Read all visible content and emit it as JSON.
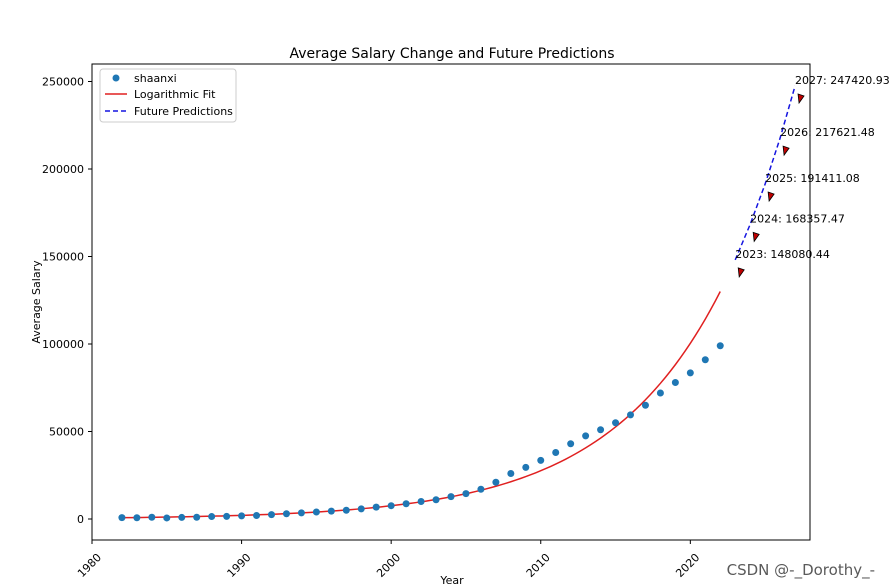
{
  "chart_data": {
    "type": "scatter",
    "title": "Average Salary Change and Future Predictions",
    "xlabel": "Year",
    "ylabel": "Average Salary",
    "xlim": [
      1980,
      2028
    ],
    "ylim": [
      -12000,
      260000
    ],
    "xticks": [
      1980,
      1990,
      2000,
      2010,
      2020
    ],
    "yticks": [
      0,
      50000,
      100000,
      150000,
      200000,
      250000
    ],
    "legend_position": "upper-left",
    "legend": [
      "shaanxi",
      "Logarithmic Fit",
      "Future Predictions"
    ],
    "series": [
      {
        "name": "shaanxi",
        "kind": "scatter",
        "color": "#1f77b4",
        "x": [
          1982,
          1983,
          1984,
          1985,
          1986,
          1987,
          1988,
          1989,
          1990,
          1991,
          1992,
          1993,
          1994,
          1995,
          1996,
          1997,
          1998,
          1999,
          2000,
          2001,
          2002,
          2003,
          2004,
          2005,
          2006,
          2007,
          2008,
          2009,
          2010,
          2011,
          2012,
          2013,
          2014,
          2015,
          2016,
          2017,
          2018,
          2019,
          2020,
          2021,
          2022
        ],
        "y": [
          800,
          700,
          1000,
          600,
          900,
          1000,
          1400,
          1500,
          1800,
          2000,
          2500,
          3000,
          3500,
          4000,
          4500,
          5000,
          5800,
          6800,
          7600,
          8700,
          10000,
          11000,
          12800,
          14500,
          17000,
          21000,
          26000,
          29500,
          33500,
          38000,
          43000,
          47500,
          51000,
          55000,
          59500,
          65000,
          72000,
          78000,
          83500,
          91000,
          99000
        ]
      },
      {
        "name": "Logarithmic Fit",
        "kind": "line",
        "color": "#e02020",
        "x": [
          1982,
          2022
        ],
        "growth_rate": 0.13,
        "y": [
          740,
          130000
        ]
      },
      {
        "name": "Future Predictions",
        "kind": "dashed-line",
        "color": "#1414e0",
        "x": [
          2023,
          2024,
          2025,
          2026,
          2027
        ],
        "y": [
          148080.44,
          168357.47,
          191411.08,
          217621.48,
          247420.93
        ]
      }
    ],
    "annotations": [
      {
        "x": 2023,
        "y": 148080.44,
        "text": "2023: 148080.44"
      },
      {
        "x": 2024,
        "y": 168357.47,
        "text": "2024: 168357.47"
      },
      {
        "x": 2025,
        "y": 191411.08,
        "text": "2025: 191411.08"
      },
      {
        "x": 2026,
        "y": 217621.48,
        "text": "2026: 217621.48"
      },
      {
        "x": 2027,
        "y": 247420.93,
        "text": "2027: 247420.93"
      }
    ],
    "arrow_color": "#c00000"
  },
  "watermark": "CSDN @-_Dorothy_-"
}
